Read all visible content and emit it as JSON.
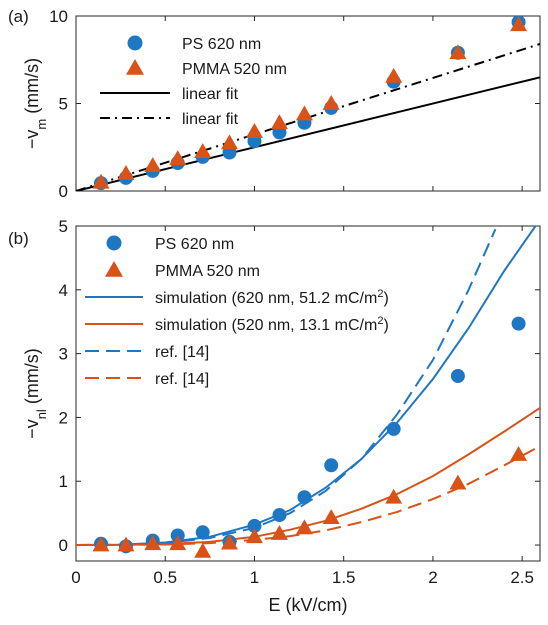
{
  "chart_data": [
    {
      "type": "scatter",
      "panel_label": "(a)",
      "ylabel": "−v",
      "ylabel_sub": "m",
      "ylabel_unit": " (mm/s)",
      "xlim": [
        0,
        2.6
      ],
      "ylim": [
        0,
        10
      ],
      "xticks": [
        0,
        0.5,
        1,
        1.5,
        2,
        2.5
      ],
      "xtick_labels": [
        "",
        "",
        "",
        "",
        "",
        ""
      ],
      "yticks": [
        0,
        5,
        10
      ],
      "ytick_labels": [
        "0",
        "5",
        "10"
      ],
      "legend_position": "top-left",
      "series": [
        {
          "name": "PS 620 nm",
          "kind": "points",
          "marker": "circle",
          "color": "#1f77c4",
          "x": [
            0.14,
            0.28,
            0.43,
            0.57,
            0.71,
            0.86,
            1.0,
            1.14,
            1.28,
            1.43,
            1.78,
            2.14,
            2.48
          ],
          "y": [
            0.45,
            0.75,
            1.15,
            1.6,
            1.95,
            2.2,
            2.85,
            3.35,
            3.9,
            4.75,
            6.25,
            7.9,
            9.65
          ]
        },
        {
          "name": "PMMA 520 nm",
          "kind": "points",
          "marker": "triangle",
          "color": "#d95319",
          "x": [
            0.14,
            0.28,
            0.43,
            0.57,
            0.71,
            0.86,
            1.0,
            1.14,
            1.28,
            1.43,
            1.78,
            2.14,
            2.48
          ],
          "y": [
            0.5,
            1.0,
            1.45,
            1.85,
            2.25,
            2.75,
            3.4,
            3.9,
            4.4,
            5.0,
            6.55,
            7.9,
            9.5
          ]
        },
        {
          "name": "linear fit",
          "kind": "line",
          "dash": "solid",
          "color": "#000000",
          "x": [
            0,
            2.6
          ],
          "y": [
            0,
            6.5
          ]
        },
        {
          "name": "linear fit",
          "kind": "line",
          "dash": "dashdot",
          "color": "#000000",
          "x": [
            0,
            2.6
          ],
          "y": [
            0,
            8.4
          ]
        }
      ]
    },
    {
      "type": "scatter",
      "panel_label": "(b)",
      "xlabel": "E (kV/cm)",
      "ylabel": "−v",
      "ylabel_sub": "nl",
      "ylabel_unit": " (mm/s)",
      "xlim": [
        0,
        2.6
      ],
      "ylim": [
        -0.25,
        5
      ],
      "xticks": [
        0,
        0.5,
        1,
        1.5,
        2,
        2.5
      ],
      "xtick_labels": [
        "0",
        "0.5",
        "1",
        "1.5",
        "2",
        "2.5"
      ],
      "yticks": [
        0,
        1,
        2,
        3,
        4,
        5
      ],
      "ytick_labels": [
        "0",
        "1",
        "2",
        "3",
        "4",
        "5"
      ],
      "legend_position": "top-left",
      "series": [
        {
          "name": "PS 620 nm",
          "kind": "points",
          "marker": "circle",
          "color": "#1f77c4",
          "x": [
            0.14,
            0.28,
            0.43,
            0.57,
            0.71,
            0.86,
            1.0,
            1.14,
            1.28,
            1.43,
            1.78,
            2.14,
            2.48
          ],
          "y": [
            0.02,
            -0.02,
            0.07,
            0.15,
            0.2,
            0.05,
            0.3,
            0.47,
            0.75,
            1.25,
            1.82,
            2.65,
            3.47
          ]
        },
        {
          "name": "PMMA 520 nm",
          "kind": "points",
          "marker": "triangle",
          "color": "#d95319",
          "x": [
            0.14,
            0.28,
            0.43,
            0.57,
            0.71,
            0.86,
            1.0,
            1.14,
            1.28,
            1.43,
            1.78,
            2.14,
            2.48
          ],
          "y": [
            0.0,
            0.0,
            0.02,
            0.02,
            -0.1,
            0.03,
            0.13,
            0.18,
            0.27,
            0.43,
            0.75,
            0.97,
            1.42
          ]
        },
        {
          "name": "simulation (620 nm, 51.2 mC/m",
          "name_sup": "2",
          "name_tail": ")",
          "kind": "line",
          "dash": "solid",
          "color": "#1f77c4",
          "x": [
            0,
            0.25,
            0.5,
            0.75,
            1.0,
            1.2,
            1.4,
            1.6,
            1.8,
            2.0,
            2.2,
            2.4,
            2.6
          ],
          "y": [
            0,
            0.005,
            0.04,
            0.13,
            0.32,
            0.55,
            0.9,
            1.35,
            1.92,
            2.6,
            3.4,
            4.3,
            5.1
          ]
        },
        {
          "name": "simulation (520 nm, 13.1 mC/m",
          "name_sup": "2",
          "name_tail": ")",
          "kind": "line",
          "dash": "solid",
          "color": "#d95319",
          "x": [
            0,
            0.25,
            0.5,
            0.75,
            1.0,
            1.2,
            1.4,
            1.6,
            1.8,
            2.0,
            2.2,
            2.4,
            2.6
          ],
          "y": [
            0,
            0.002,
            0.015,
            0.05,
            0.13,
            0.24,
            0.38,
            0.57,
            0.8,
            1.08,
            1.42,
            1.78,
            2.15
          ]
        },
        {
          "name": "ref. [14]",
          "kind": "line",
          "dash": "dashed",
          "color": "#1f77c4",
          "x": [
            0,
            0.25,
            0.5,
            0.75,
            1.0,
            1.2,
            1.4,
            1.6,
            1.8,
            2.0,
            2.2,
            2.35
          ],
          "y": [
            0,
            0.004,
            0.03,
            0.11,
            0.27,
            0.5,
            0.85,
            1.35,
            2.05,
            2.9,
            4.0,
            4.95
          ]
        },
        {
          "name": "ref. [14]",
          "kind": "line",
          "dash": "dashed",
          "color": "#d95319",
          "x": [
            0,
            0.25,
            0.5,
            0.75,
            1.0,
            1.2,
            1.4,
            1.6,
            1.8,
            2.0,
            2.2,
            2.4,
            2.6
          ],
          "y": [
            0,
            0.001,
            0.008,
            0.03,
            0.08,
            0.14,
            0.23,
            0.36,
            0.52,
            0.72,
            0.96,
            1.25,
            1.55
          ]
        }
      ]
    }
  ]
}
